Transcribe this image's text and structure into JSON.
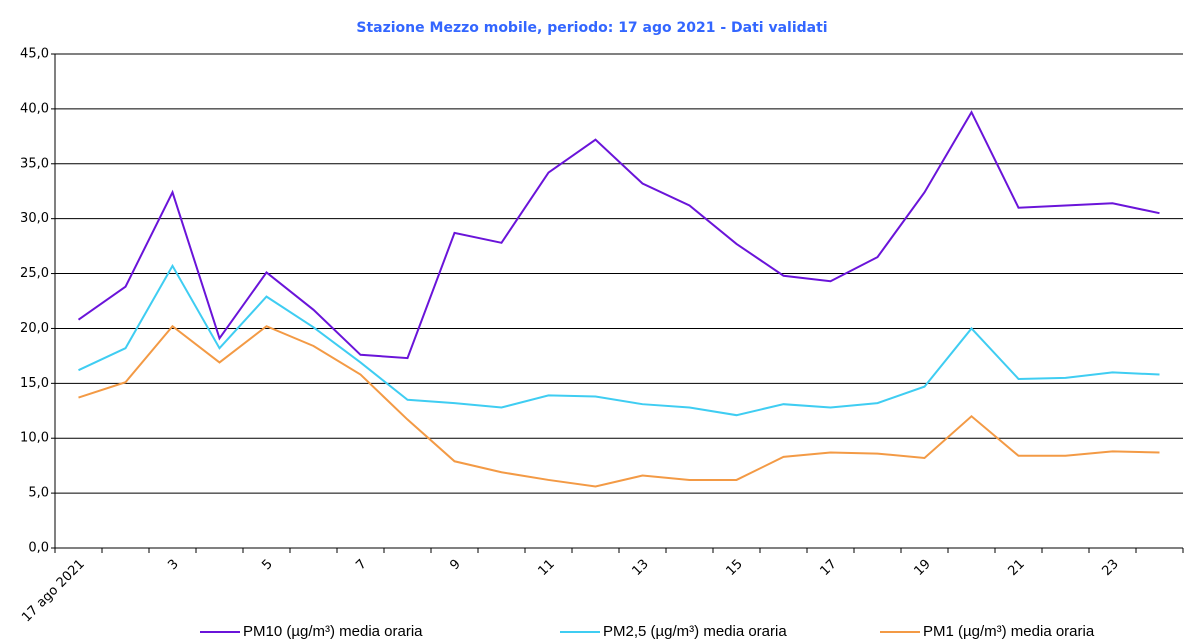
{
  "chart_data": {
    "type": "line",
    "title": "Stazione Mezzo mobile, periodo: 17 ago 2021 - Dati validati",
    "categories": [
      "17 ago 2021",
      null,
      "3",
      null,
      "5",
      null,
      "7",
      null,
      "9",
      null,
      "11",
      null,
      "13",
      null,
      "15",
      null,
      "17",
      null,
      "19",
      null,
      "21",
      null,
      "23",
      null
    ],
    "series": [
      {
        "name": "PM10 (µg/m³) media oraria",
        "color": "#6a14d9",
        "values": [
          20.8,
          23.8,
          32.4,
          19.1,
          25.1,
          21.7,
          17.6,
          17.3,
          28.7,
          27.8,
          34.2,
          37.2,
          33.2,
          31.2,
          27.7,
          24.8,
          24.3,
          26.5,
          32.4,
          39.7,
          31.0,
          31.2,
          31.4,
          30.5
        ]
      },
      {
        "name": "PM2,5 (µg/m³) media oraria",
        "color": "#3fcdf2",
        "values": [
          16.2,
          18.2,
          25.7,
          18.2,
          22.9,
          20.1,
          16.9,
          13.5,
          13.2,
          12.8,
          13.9,
          13.8,
          13.1,
          12.8,
          12.1,
          13.1,
          12.8,
          13.2,
          14.7,
          20.0,
          15.4,
          15.5,
          16.0,
          15.8
        ]
      },
      {
        "name": "PM1 (µg/m³) media oraria",
        "color": "#f39a45",
        "values": [
          13.7,
          15.1,
          20.2,
          16.9,
          20.2,
          18.4,
          15.8,
          11.7,
          7.9,
          6.9,
          6.2,
          5.6,
          6.6,
          6.2,
          6.2,
          8.3,
          8.7,
          8.6,
          8.2,
          12.0,
          8.4,
          8.4,
          8.8,
          8.7
        ]
      }
    ],
    "ylim": [
      0,
      45
    ],
    "yticks": [
      {
        "value": 0,
        "label": "0,0"
      },
      {
        "value": 5,
        "label": "5,0"
      },
      {
        "value": 10,
        "label": "10,0"
      },
      {
        "value": 15,
        "label": "15,0"
      },
      {
        "value": 20,
        "label": "20,0"
      },
      {
        "value": 25,
        "label": "25,0"
      },
      {
        "value": 30,
        "label": "30,0"
      },
      {
        "value": 35,
        "label": "35,0"
      },
      {
        "value": 40,
        "label": "40,0"
      },
      {
        "value": 45,
        "label": "45,0"
      }
    ],
    "grid": true,
    "legend": "bottom"
  }
}
